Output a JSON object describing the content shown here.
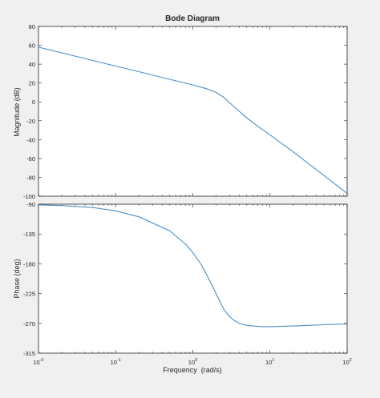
{
  "chart_data": {
    "type": "line",
    "title": "Bode Diagram",
    "xlabel": "Frequency  (rad/s)",
    "x_scale": "log",
    "xlim": [
      0.01,
      100
    ],
    "x_ticks": [
      {
        "base": "10",
        "exp": "-2"
      },
      {
        "base": "10",
        "exp": "-1"
      },
      {
        "base": "10",
        "exp": "0"
      },
      {
        "base": "10",
        "exp": "1"
      },
      {
        "base": "10",
        "exp": "2"
      }
    ],
    "grid": false,
    "line_color": "#4a8fc7",
    "subplots": [
      {
        "name": "magnitude",
        "ylabel": "Magnitude (dB)",
        "ylim": [
          -100,
          80
        ],
        "y_ticks": [
          "-100",
          "-80",
          "-60",
          "-40",
          "-20",
          "0",
          "20",
          "40",
          "60",
          "80"
        ],
        "x": [
          0.01,
          0.02,
          0.05,
          0.1,
          0.2,
          0.5,
          1,
          1.5,
          2,
          2.5,
          3,
          4,
          5,
          7,
          10,
          20,
          50,
          100
        ],
        "values": [
          58,
          52,
          44,
          38,
          32,
          24,
          18,
          14,
          10,
          5,
          -1,
          -10,
          -17,
          -26,
          -35,
          -53,
          -78,
          -97
        ]
      },
      {
        "name": "phase",
        "ylabel": "Phase (deg)",
        "ylim": [
          -315,
          -90
        ],
        "y_ticks": [
          "-315",
          "-270",
          "-225",
          "-180",
          "-135",
          "-90"
        ],
        "x": [
          0.01,
          0.02,
          0.05,
          0.1,
          0.2,
          0.5,
          0.8,
          1,
          1.3,
          1.7,
          2,
          2.5,
          3,
          3.5,
          4,
          5,
          6,
          8,
          10,
          20,
          50,
          100
        ],
        "values": [
          -91,
          -92,
          -95,
          -100,
          -109,
          -130,
          -150,
          -163,
          -182,
          -208,
          -225,
          -248,
          -260,
          -266,
          -270,
          -273,
          -274,
          -275,
          -275,
          -274,
          -272,
          -271
        ]
      }
    ]
  }
}
